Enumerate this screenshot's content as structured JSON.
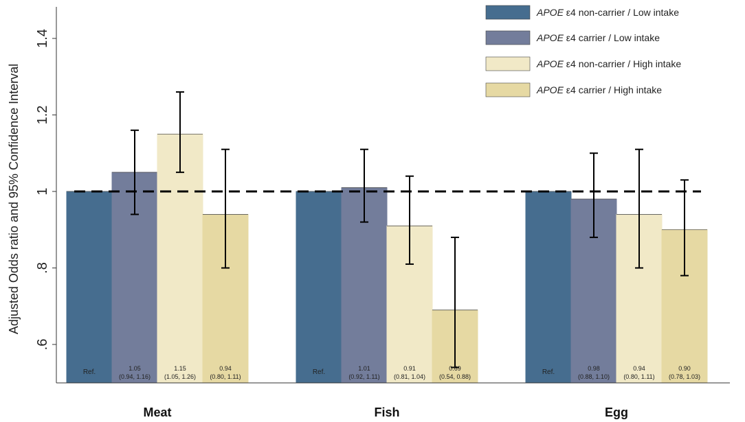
{
  "chart_data": {
    "type": "bar",
    "title": "",
    "xlabel": "",
    "ylabel": "Adjusted Odds ratio and 95% Confidence Interval",
    "ylim": [
      0.5,
      1.45
    ],
    "yticks": [
      0.6,
      0.8,
      1.0,
      1.2,
      1.4
    ],
    "ytick_labels": [
      ".6",
      ".8",
      "1",
      "1.2",
      "1.4"
    ],
    "reference_line": 1.0,
    "categories": [
      "Meat",
      "Fish",
      "Egg"
    ],
    "series": [
      {
        "name": "APOE ε4 non-carrier / Low intake",
        "legend_italic": "APOE",
        "legend_rest": " ε4 non-carrier / Low intake",
        "color": "#466d8f",
        "values": [
          1.0,
          1.0,
          1.0
        ],
        "ci_low": [
          null,
          null,
          null
        ],
        "ci_high": [
          null,
          null,
          null
        ],
        "labels": [
          [
            "Ref."
          ],
          [
            "Ref."
          ],
          [
            "Ref."
          ]
        ]
      },
      {
        "name": "APOE ε4 carrier / Low intake",
        "legend_italic": "APOE",
        "legend_rest": " ε4 carrier / Low intake",
        "color": "#737d9b",
        "values": [
          1.05,
          1.01,
          0.98
        ],
        "ci_low": [
          0.94,
          0.92,
          0.88
        ],
        "ci_high": [
          1.16,
          1.11,
          1.1
        ],
        "labels": [
          [
            "1.05",
            "(0.94, 1.16)"
          ],
          [
            "1.01",
            "(0.92, 1.11)"
          ],
          [
            "0.98",
            "(0.88, 1.10)"
          ]
        ]
      },
      {
        "name": "APOE ε4 non-carrier / High intake",
        "legend_italic": "APOE",
        "legend_rest": " ε4 non-carrier / High intake",
        "color": "#f1e9c7",
        "values": [
          1.15,
          0.91,
          0.94
        ],
        "ci_low": [
          1.05,
          0.81,
          0.8
        ],
        "ci_high": [
          1.26,
          1.04,
          1.11
        ],
        "labels": [
          [
            "1.15",
            "(1.05, 1.26)"
          ],
          [
            "0.91",
            "(0.81, 1.04)"
          ],
          [
            "0.94",
            "(0.80, 1.11)"
          ]
        ]
      },
      {
        "name": "APOE ε4 carrier / High intake",
        "legend_italic": "APOE",
        "legend_rest": " ε4 carrier / High intake",
        "color": "#e6d9a3",
        "values": [
          0.94,
          0.69,
          0.9
        ],
        "ci_low": [
          0.8,
          0.54,
          0.78
        ],
        "ci_high": [
          1.11,
          0.88,
          1.03
        ],
        "labels": [
          [
            "0.94",
            "(0.80, 1.11)"
          ],
          [
            "0.69",
            "(0.54, 0.88)"
          ],
          [
            "0.90",
            "(0.78, 1.03)"
          ]
        ]
      }
    ]
  }
}
